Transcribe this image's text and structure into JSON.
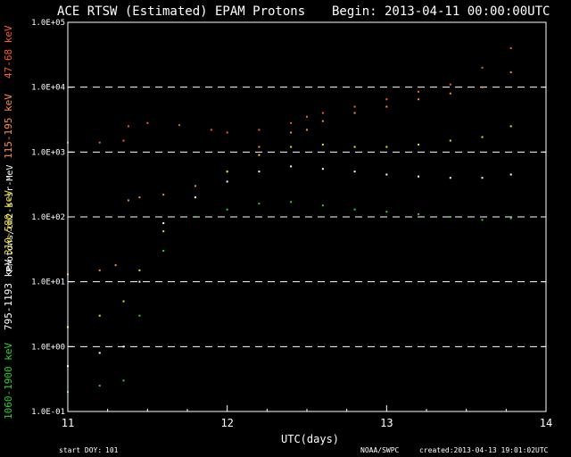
{
  "header": {
    "title": "ACE RTSW (Estimated) EPAM Protons",
    "begin_label": "Begin: 2013-04-11 00:00:00UTC"
  },
  "footer": {
    "start_doy_label": "start DOY:",
    "start_doy_value": "101",
    "source": "NOAA/SWPC",
    "created": "created:2013-04-13 19:01:02UTC"
  },
  "colors": {
    "background": "#000000",
    "axis": "#ffffff",
    "grid": "#ffffff",
    "ch_47_68": "#ff5a2a",
    "ch_115_195": "#ff8c3a",
    "ch_310_580": "#f0e020",
    "ch_795_1193": "#ffffff",
    "ch_1060_1900": "#30d030"
  },
  "chart_data": {
    "type": "scatter",
    "title": "ACE RTSW (Estimated) EPAM Protons",
    "xlabel": "UTC(days)",
    "ylabel": "Protons/cm2-s-sr-MeV",
    "xlim": [
      11,
      14
    ],
    "ylim": [
      0.1,
      100000
    ],
    "yscale": "log",
    "grid": "horizontal dashed at each decade",
    "xticks": [
      "11",
      "12",
      "13",
      "14"
    ],
    "yticks": [
      "1.0E-01",
      "1.0E+00",
      "1.0E+01",
      "1.0E+02",
      "1.0E+03",
      "1.0E+04",
      "1.0E+05"
    ],
    "series": [
      {
        "name": "47-68 keV",
        "color": "#ff5a2a",
        "x": [
          11.0,
          11.2,
          11.35,
          11.38,
          11.5,
          11.7,
          11.9,
          12.0,
          12.2,
          12.4,
          12.5,
          12.6,
          12.8,
          13.0,
          13.2,
          13.4,
          13.6,
          13.78
        ],
        "y": [
          1400,
          1400,
          1500,
          2500,
          2800,
          2600,
          2200,
          2000,
          2200,
          2800,
          3500,
          4000,
          5000,
          6500,
          8500,
          11000,
          20000,
          40000
        ]
      },
      {
        "name": "115-195 keV",
        "color": "#ff8c3a",
        "x": [
          11.0,
          11.2,
          11.3,
          11.38,
          11.45,
          11.6,
          11.8,
          12.0,
          12.2,
          12.4,
          12.5,
          12.6,
          12.8,
          13.0,
          13.2,
          13.4,
          13.6,
          13.78
        ],
        "y": [
          13,
          15,
          18,
          180,
          200,
          220,
          300,
          500,
          1200,
          2000,
          2200,
          3000,
          4000,
          5000,
          6500,
          8000,
          10000,
          17000
        ]
      },
      {
        "name": "310-580 keV",
        "color": "#f0e020",
        "x": [
          11.0,
          11.2,
          11.35,
          11.45,
          11.6,
          11.8,
          12.0,
          12.2,
          12.4,
          12.6,
          12.8,
          13.0,
          13.2,
          13.4,
          13.6,
          13.78
        ],
        "y": [
          2.0,
          3.0,
          5.0,
          15,
          60,
          200,
          500,
          900,
          1200,
          1300,
          1200,
          1200,
          1300,
          1500,
          1700,
          2500
        ]
      },
      {
        "name": "795-1193 keV",
        "color": "#ffffff",
        "x": [
          11.0,
          11.2,
          11.35,
          11.45,
          11.6,
          11.8,
          12.0,
          12.2,
          12.4,
          12.6,
          12.8,
          13.0,
          13.2,
          13.4,
          13.6,
          13.78
        ],
        "y": [
          0.5,
          0.8,
          1.0,
          10,
          80,
          200,
          350,
          500,
          600,
          550,
          500,
          450,
          420,
          400,
          400,
          450
        ]
      },
      {
        "name": "1060-1900 keV",
        "color": "#30d030",
        "x": [
          11.0,
          11.2,
          11.35,
          11.45,
          11.6,
          11.8,
          12.0,
          12.2,
          12.4,
          12.6,
          12.8,
          13.0,
          13.2,
          13.4,
          13.6,
          13.78
        ],
        "y": [
          0.2,
          0.25,
          0.3,
          3.0,
          30,
          100,
          130,
          160,
          170,
          150,
          130,
          120,
          110,
          100,
          90,
          95
        ]
      }
    ]
  }
}
